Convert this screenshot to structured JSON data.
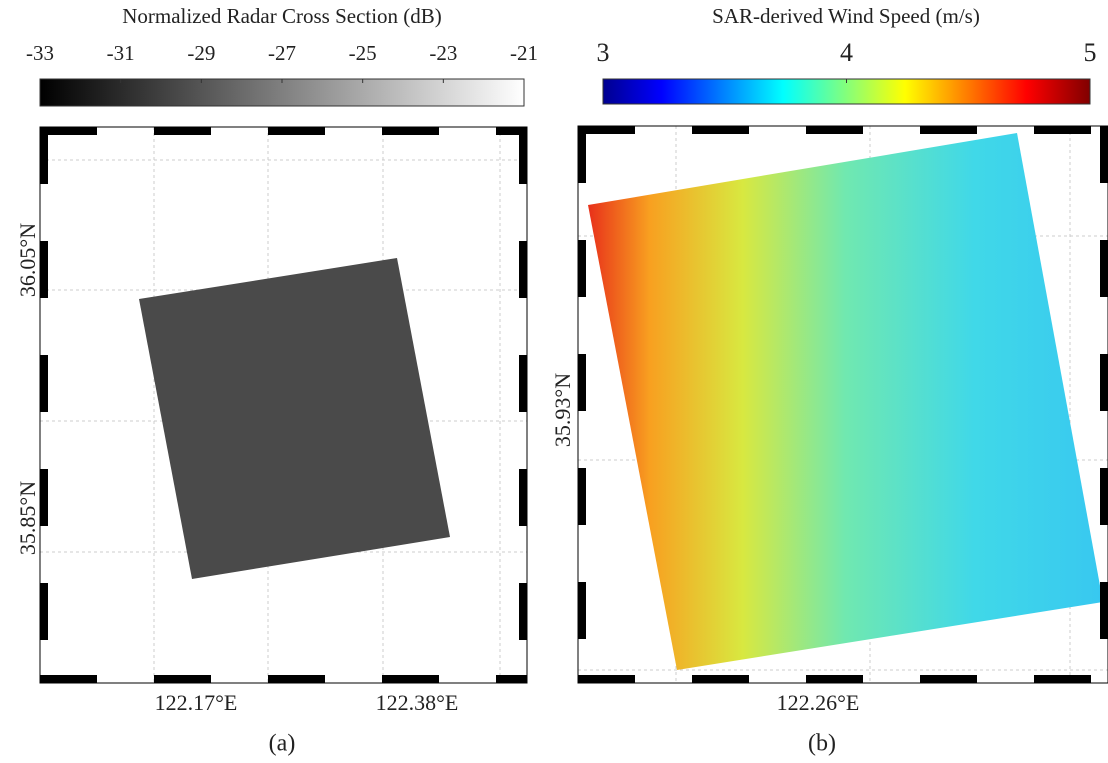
{
  "panels": [
    {
      "colorbar": {
        "title": "Normalized Radar Cross Section (dB)",
        "lim": [
          -33,
          -21
        ],
        "ticks": [
          -33,
          -31,
          -29,
          -27,
          -25,
          -23,
          -21
        ]
      },
      "lat_labels": [
        "36.05°N",
        "35.85°N"
      ],
      "lon_labels": [
        "122.17°E",
        "122.38°E"
      ],
      "caption": "(a)"
    },
    {
      "colorbar": {
        "title": "SAR-derived Wind Speed (m/s)",
        "lim": [
          3,
          5
        ],
        "ticks": [
          3,
          4,
          5
        ]
      },
      "lat_labels": [
        "35.93°N"
      ],
      "lon_labels": [
        "122.26°E"
      ],
      "caption": "(b)"
    }
  ]
}
